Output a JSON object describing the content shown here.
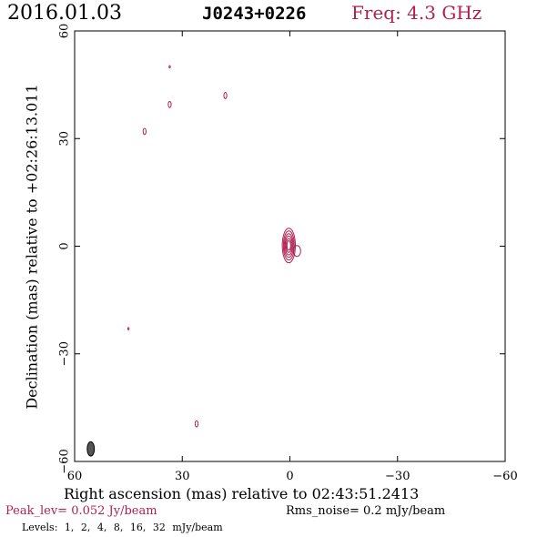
{
  "header": {
    "date": "2016.01.03",
    "source": "J0243+0226",
    "frequency": "Freq: 4.3 GHz"
  },
  "footer": {
    "peak": "Peak_lev=  0.052 Jy/beam",
    "rms": "Rms_noise=  0.2 mJy/beam",
    "levels": "Levels:  1,  2,  4,  8,  16,  32 mJy/beam"
  },
  "colors": {
    "contour": "#b0204f",
    "beam": "#555555"
  },
  "chart_data": {
    "type": "contour",
    "xlabel": "Right ascension (mas) relative to 02:43:51.2413",
    "ylabel": "Declination (mas) relative to +02:26:13.011",
    "xlim": [
      60,
      -60
    ],
    "ylim": [
      -60,
      60
    ],
    "x_ticks": [
      60,
      30,
      0,
      -30,
      -60
    ],
    "y_ticks": [
      -60,
      -30,
      0,
      30,
      60
    ],
    "x_tick_labels": [
      "60",
      "30",
      "0",
      "−30",
      "−60"
    ],
    "y_tick_labels": [
      "−60",
      "−30",
      "0",
      "30",
      "60"
    ],
    "contour_levels_mJy": [
      1,
      2,
      4,
      8,
      16,
      32
    ],
    "peak_Jy_per_beam": 0.052,
    "rms_mJy_per_beam": 0.2,
    "core": {
      "x": 0.3,
      "y": 0.2
    },
    "components": [
      {
        "x": 33.5,
        "y": 50.0
      },
      {
        "x": 18.0,
        "y": 42.0
      },
      {
        "x": 33.5,
        "y": 39.5
      },
      {
        "x": 40.5,
        "y": 32.0
      },
      {
        "x": 45.0,
        "y": -23.0
      },
      {
        "x": 26.0,
        "y": -49.5
      }
    ],
    "beam": {
      "x": 55.5,
      "y": -56.5,
      "major_mas": 4.2,
      "minor_mas": 2.6
    }
  }
}
